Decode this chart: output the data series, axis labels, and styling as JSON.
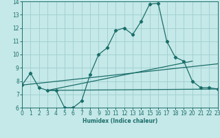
{
  "xlabel": "Humidex (Indice chaleur)",
  "xlim": [
    0,
    23
  ],
  "ylim": [
    6,
    14
  ],
  "xticks": [
    0,
    1,
    2,
    3,
    4,
    5,
    6,
    7,
    8,
    9,
    10,
    11,
    12,
    13,
    14,
    15,
    16,
    17,
    18,
    19,
    20,
    21,
    22,
    23
  ],
  "yticks": [
    6,
    7,
    8,
    9,
    10,
    11,
    12,
    13,
    14
  ],
  "bg_color": "#c5e8e8",
  "grid_color": "#9ecece",
  "line_color": "#1a6e6a",
  "curve1_x": [
    0,
    1,
    2,
    3,
    4,
    5,
    6,
    7,
    8,
    9,
    10,
    11,
    12,
    13,
    14,
    15,
    16,
    17,
    18,
    19,
    20,
    21,
    22,
    23
  ],
  "curve1_y": [
    7.7,
    8.6,
    7.5,
    7.3,
    7.3,
    6.0,
    6.0,
    6.5,
    8.5,
    10.0,
    10.5,
    11.8,
    12.0,
    11.5,
    12.5,
    13.8,
    13.85,
    11.0,
    9.8,
    9.5,
    8.0,
    7.5,
    7.5,
    7.4
  ],
  "line2_x": [
    3,
    23
  ],
  "line2_y": [
    7.3,
    7.4
  ],
  "line3_x": [
    3,
    20
  ],
  "line3_y": [
    7.3,
    9.5
  ],
  "line4_x": [
    0,
    23
  ],
  "line4_y": [
    7.7,
    9.3
  ]
}
